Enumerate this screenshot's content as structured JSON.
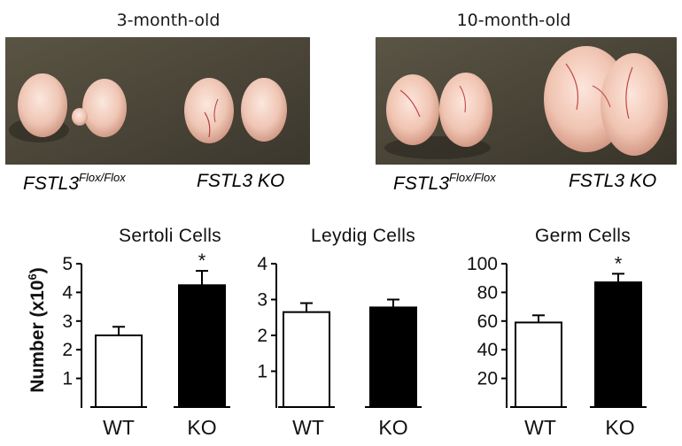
{
  "photos": {
    "left_title": "3-month-old",
    "right_title": "10-month-old",
    "left_flox_base": "FSTL3",
    "left_flox_sup": "Flox/Flox",
    "left_ko": "FSTL3 KO",
    "right_flox_base": "FSTL3",
    "right_flox_sup": "Flox/Flox",
    "right_ko": "FSTL3 KO"
  },
  "ylabel": {
    "text": "Number (x10",
    "sup": "6",
    "close": ")"
  },
  "chart_data": [
    {
      "type": "bar",
      "title": "Sertoli Cells",
      "categories": [
        "WT",
        "KO"
      ],
      "values": [
        2.5,
        4.25
      ],
      "errors": [
        0.3,
        0.5
      ],
      "colors": [
        "#ffffff",
        "#000000"
      ],
      "significance": [
        "",
        "*"
      ],
      "ylim": [
        0,
        5
      ],
      "yticks": [
        1,
        2,
        3,
        4,
        5
      ]
    },
    {
      "type": "bar",
      "title": "Leydig Cells",
      "categories": [
        "WT",
        "KO"
      ],
      "values": [
        2.65,
        2.78
      ],
      "errors": [
        0.25,
        0.22
      ],
      "colors": [
        "#ffffff",
        "#000000"
      ],
      "significance": [
        "",
        ""
      ],
      "ylim": [
        0,
        4
      ],
      "yticks": [
        1,
        2,
        3,
        4
      ]
    },
    {
      "type": "bar",
      "title": "Germ Cells",
      "categories": [
        "WT",
        "KO"
      ],
      "values": [
        59,
        87
      ],
      "errors": [
        5,
        6
      ],
      "colors": [
        "#ffffff",
        "#000000"
      ],
      "significance": [
        "",
        "*"
      ],
      "ylim": [
        0,
        100
      ],
      "yticks": [
        20,
        40,
        60,
        80,
        100
      ]
    }
  ]
}
